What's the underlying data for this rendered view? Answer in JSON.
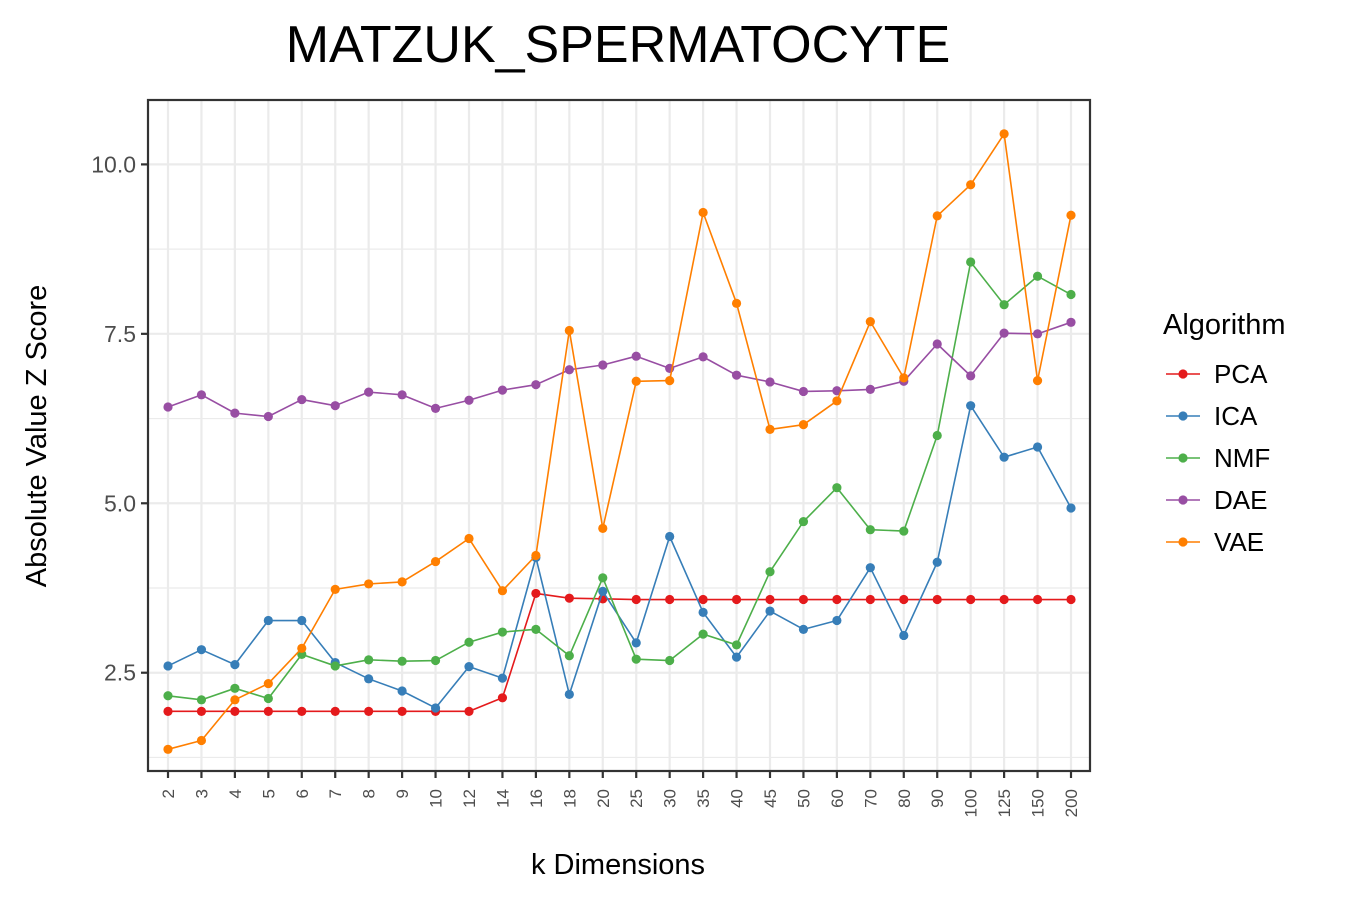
{
  "chart_data": {
    "type": "line",
    "title": "MATZUK_SPERMATOCYTE",
    "xlabel": "k Dimensions",
    "ylabel": "Absolute Value Z Score",
    "categories": [
      "2",
      "3",
      "4",
      "5",
      "6",
      "7",
      "8",
      "9",
      "10",
      "12",
      "14",
      "16",
      "18",
      "20",
      "25",
      "30",
      "35",
      "40",
      "45",
      "50",
      "60",
      "70",
      "80",
      "90",
      "100",
      "125",
      "150",
      "200"
    ],
    "ylim": [
      1.05,
      10.95
    ],
    "yticks": [
      2.5,
      5.0,
      7.5,
      10.0
    ],
    "ytick_labels": [
      "2.5",
      "5.0",
      "7.5",
      "10.0"
    ],
    "grid": true,
    "legend": {
      "title": "Algorithm",
      "position": "right"
    },
    "series": [
      {
        "name": "PCA",
        "color": "#E41A1C",
        "values": [
          1.93,
          1.93,
          1.93,
          1.93,
          1.93,
          1.93,
          1.93,
          1.93,
          1.93,
          1.93,
          2.13,
          3.67,
          3.6,
          3.59,
          3.58,
          3.58,
          3.58,
          3.58,
          3.58,
          3.58,
          3.58,
          3.58,
          3.58,
          3.58,
          3.58,
          3.58,
          3.58,
          3.58
        ]
      },
      {
        "name": "ICA",
        "color": "#377EB8",
        "values": [
          2.6,
          2.84,
          2.62,
          3.27,
          3.27,
          2.65,
          2.41,
          2.23,
          1.98,
          2.59,
          2.42,
          4.2,
          2.18,
          3.7,
          2.94,
          4.51,
          3.39,
          2.73,
          3.41,
          3.14,
          3.27,
          4.05,
          3.05,
          4.13,
          6.44,
          5.68,
          5.83,
          4.93
        ]
      },
      {
        "name": "NMF",
        "color": "#4DAF4A",
        "values": [
          2.16,
          2.1,
          2.27,
          2.12,
          2.77,
          2.6,
          2.69,
          2.67,
          2.68,
          2.95,
          3.1,
          3.14,
          2.75,
          3.9,
          2.7,
          2.68,
          3.07,
          2.91,
          3.99,
          4.73,
          5.23,
          4.61,
          4.59,
          6.0,
          8.56,
          7.93,
          8.35,
          8.08
        ]
      },
      {
        "name": "DAE",
        "color": "#984EA3",
        "values": [
          6.42,
          6.6,
          6.33,
          6.28,
          6.53,
          6.44,
          6.64,
          6.6,
          6.4,
          6.52,
          6.67,
          6.75,
          6.97,
          7.04,
          7.17,
          6.99,
          7.16,
          6.89,
          6.79,
          6.65,
          6.66,
          6.68,
          6.8,
          7.35,
          6.88,
          7.51,
          7.5,
          7.67
        ]
      },
      {
        "name": "VAE",
        "color": "#FF7F00",
        "values": [
          1.37,
          1.5,
          2.1,
          2.34,
          2.86,
          3.73,
          3.81,
          3.84,
          4.14,
          4.48,
          3.71,
          4.23,
          7.55,
          4.63,
          6.8,
          6.81,
          9.29,
          7.95,
          6.09,
          6.16,
          6.51,
          7.68,
          6.85,
          9.24,
          9.7,
          10.45,
          6.81,
          9.25
        ]
      }
    ]
  }
}
